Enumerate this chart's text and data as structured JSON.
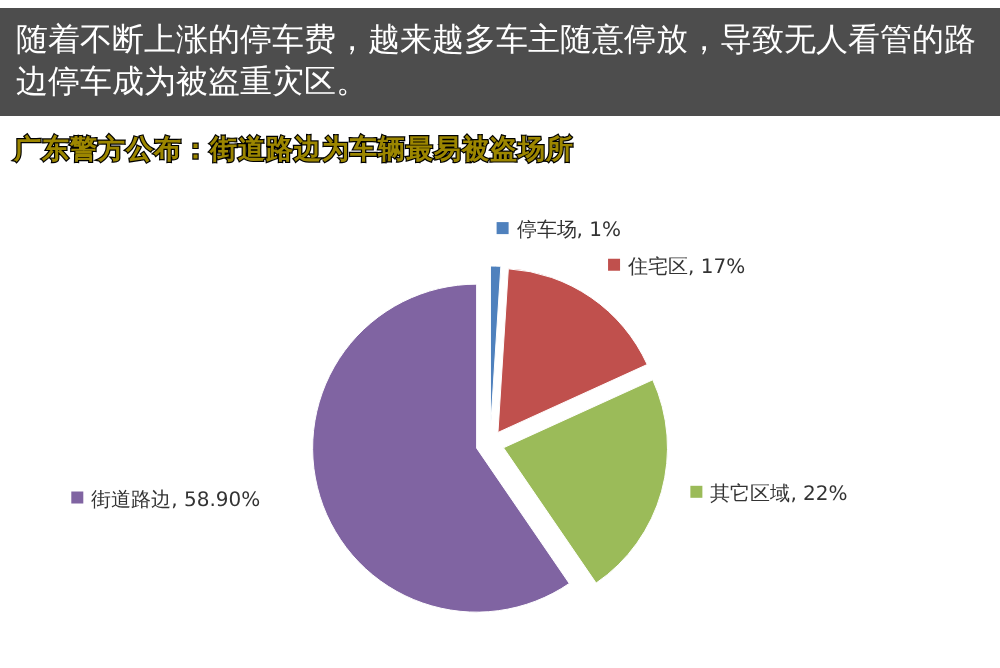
{
  "chart_data": {
    "type": "pie",
    "title": "随着不断上涨的停车费，越来越多车主随意停放，导致无人看管的路边停车成为被盗重灾区。",
    "subtitle": "广东警方公布：街道路边为车辆最易被盗场所",
    "categories": [
      "停车场",
      "住宅区",
      "其它区域",
      "街道路边"
    ],
    "values": [
      1,
      17,
      22,
      58.9
    ],
    "value_labels": [
      "1%",
      "17%",
      "22%",
      "58.90%"
    ],
    "colors": [
      "#4f81bd",
      "#c0504d",
      "#9bbb59",
      "#8064a2"
    ],
    "legend": "top left"
  }
}
